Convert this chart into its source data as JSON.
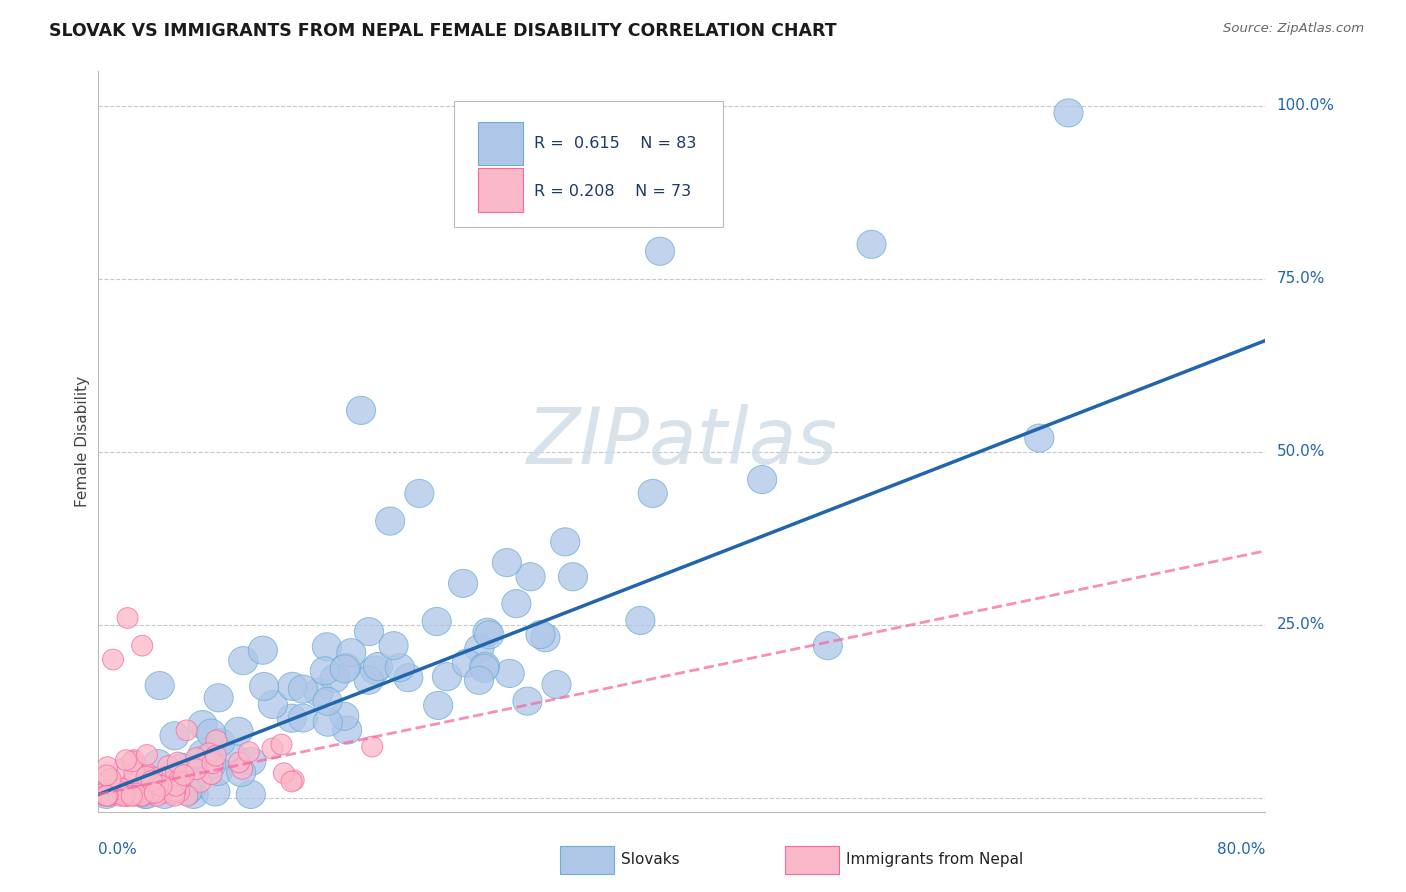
{
  "title": "SLOVAK VS IMMIGRANTS FROM NEPAL FEMALE DISABILITY CORRELATION CHART",
  "source": "Source: ZipAtlas.com",
  "ylabel_label": "Female Disability",
  "xmin": 0.0,
  "xmax": 0.8,
  "ymin": -0.02,
  "ymax": 1.05,
  "ytick_vals": [
    0.0,
    0.25,
    0.5,
    0.75,
    1.0
  ],
  "ytick_labels": [
    "",
    "25.0%",
    "50.0%",
    "75.0%",
    "100.0%"
  ],
  "grid_color": "#c8c8c8",
  "background_color": "#ffffff",
  "blue_face_color": "#aec6e8",
  "blue_edge_color": "#6baed6",
  "pink_face_color": "#f9b8c8",
  "pink_edge_color": "#f768a1",
  "blue_line_color": "#2166ac",
  "pink_line_color": "#f768a1",
  "watermark_text": "ZIPatlas",
  "legend_R_blue": "R =  0.615",
  "legend_N_blue": "N = 83",
  "legend_R_pink": "R = 0.208",
  "legend_N_pink": "N = 73",
  "blue_slope": 0.82,
  "blue_intercept": 0.005,
  "pink_slope": 0.44,
  "pink_intercept": 0.005,
  "blue_line_x_end": 0.8,
  "pink_line_x_end": 0.8
}
